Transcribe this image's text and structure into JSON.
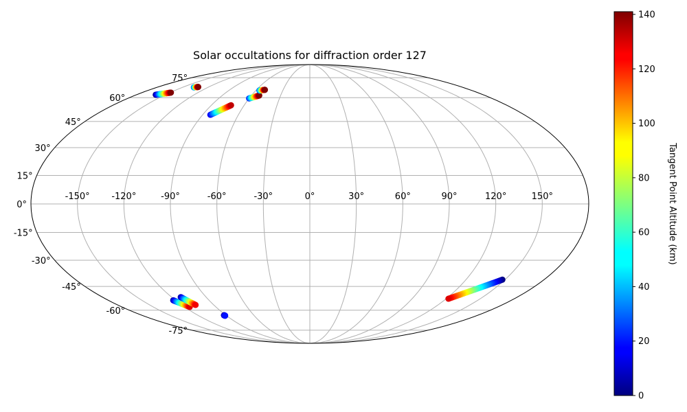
{
  "chart_data": {
    "type": "scatter",
    "projection": "mollweide",
    "title": "Solar occultations for diffraction order 127",
    "grid": true,
    "longitude_tick_labels": [
      "-150°",
      "-120°",
      "-90°",
      "-60°",
      "-30°",
      "0°",
      "30°",
      "60°",
      "90°",
      "120°",
      "150°"
    ],
    "longitude_ticks": [
      -150,
      -120,
      -90,
      -60,
      -30,
      0,
      30,
      60,
      90,
      120,
      150
    ],
    "latitude_tick_labels": [
      "75°",
      "60°",
      "45°",
      "30°",
      "15°",
      "0°",
      "-15°",
      "-30°",
      "-45°",
      "-60°",
      "-75°"
    ],
    "latitude_ticks": [
      75,
      60,
      45,
      30,
      15,
      0,
      -15,
      -30,
      -45,
      -60,
      -75
    ],
    "colorbar": {
      "label": "Tangent Point Altitude (km)",
      "range": [
        0,
        141
      ],
      "tick_labels": [
        "0",
        "20",
        "40",
        "60",
        "80",
        "100",
        "120",
        "140"
      ],
      "ticks": [
        0,
        20,
        40,
        60,
        80,
        100,
        120,
        140
      ],
      "colormap": "jet"
    },
    "tracks": [
      {
        "lon_start": -160.0,
        "lat_start": 62.0,
        "lon_end": -149.0,
        "lat_end": 63.5,
        "alt_start": 0,
        "alt_end": 141
      },
      {
        "lon_start": -136.5,
        "lat_start": 67.3,
        "lon_end": -132.5,
        "lat_end": 67.6,
        "alt_start": 25,
        "alt_end": 141
      },
      {
        "lon_start": -83.5,
        "lat_start": 49.0,
        "lon_end": -72.0,
        "lat_end": 55.0,
        "alt_start": 15,
        "alt_end": 132
      },
      {
        "lon_start": -60.0,
        "lat_start": 59.5,
        "lon_end": -52.0,
        "lat_end": 61.5,
        "alt_start": 20,
        "alt_end": 141
      },
      {
        "lon_start": -56.0,
        "lat_start": 65.0,
        "lon_end": -50.5,
        "lat_end": 65.5,
        "alt_start": 25,
        "alt_end": 141
      },
      {
        "lon_start": 148.0,
        "lat_start": -41.0,
        "lon_end": 122.0,
        "lat_end": -52.5,
        "alt_start": 0,
        "alt_end": 128
      },
      {
        "lon_start": -122.0,
        "lat_start": -53.5,
        "lon_end": -115.0,
        "lat_end": -57.8,
        "alt_start": 5,
        "alt_end": 128
      },
      {
        "lon_start": -112.0,
        "lat_start": -51.5,
        "lon_end": -107.0,
        "lat_end": -56.5,
        "alt_start": 5,
        "alt_end": 125
      },
      {
        "lon_start": -92.0,
        "lat_start": -63.5,
        "lon_end": -91.5,
        "lat_end": -63.8,
        "alt_start": 0,
        "alt_end": 20
      }
    ]
  }
}
